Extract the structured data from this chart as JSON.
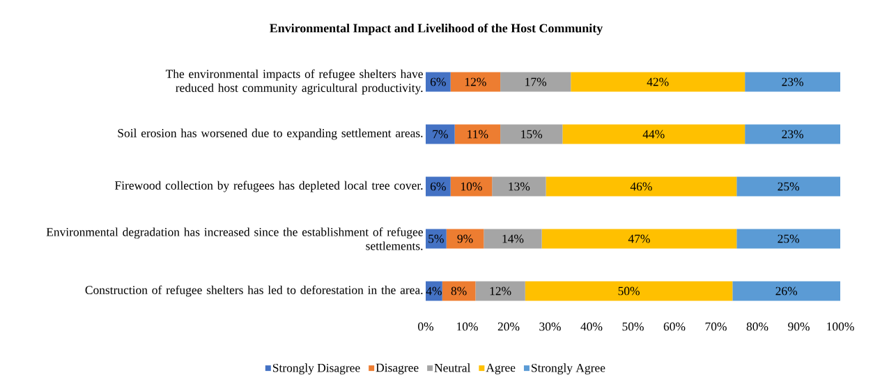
{
  "chart_data": {
    "type": "bar",
    "orientation": "horizontal",
    "stacked": true,
    "title": "Environmental Impact and Livelihood of the Host Community",
    "categories": [
      "The environmental impacts of refugee shelters have reduced host community agricultural productivity.",
      "Soil erosion has worsened due to expanding settlement areas.",
      "Firewood collection by refugees has depleted local tree cover.",
      "Environmental degradation has increased since the establishment of refugee settlements.",
      "Construction of refugee shelters has led to deforestation in the area."
    ],
    "series": [
      {
        "name": "Strongly Disagree",
        "color": "#4472c4",
        "values": [
          6,
          7,
          6,
          5,
          4
        ],
        "value_labels": [
          "6%",
          "7%",
          "6%",
          "5%",
          "4%"
        ]
      },
      {
        "name": "Disagree",
        "color": "#ed7d31",
        "values": [
          12,
          11,
          10,
          9,
          8
        ],
        "value_labels": [
          "12%",
          "11%",
          "10%",
          "9%",
          "8%"
        ]
      },
      {
        "name": "Neutral",
        "color": "#a5a5a5",
        "values": [
          17,
          15,
          13,
          14,
          12
        ],
        "value_labels": [
          "17%",
          "15%",
          "13%",
          "14%",
          "12%"
        ]
      },
      {
        "name": "Agree",
        "color": "#ffc000",
        "values": [
          42,
          44,
          46,
          47,
          50
        ],
        "value_labels": [
          "42%",
          "44%",
          "46%",
          "47%",
          "50%"
        ]
      },
      {
        "name": "Strongly Agree",
        "color": "#5b9bd5",
        "values": [
          23,
          23,
          25,
          25,
          26
        ],
        "value_labels": [
          "23%",
          "23%",
          "25%",
          "25%",
          "26%"
        ]
      }
    ],
    "xlim": [
      0,
      100
    ],
    "xticks": [
      {
        "value": 0,
        "label": "0%"
      },
      {
        "value": 10,
        "label": "10%"
      },
      {
        "value": 20,
        "label": "20%"
      },
      {
        "value": 30,
        "label": "30%"
      },
      {
        "value": 40,
        "label": "40%"
      },
      {
        "value": 50,
        "label": "50%"
      },
      {
        "value": 60,
        "label": "60%"
      },
      {
        "value": 70,
        "label": "70%"
      },
      {
        "value": 80,
        "label": "80%"
      },
      {
        "value": 90,
        "label": "90%"
      },
      {
        "value": 100,
        "label": "100%"
      }
    ],
    "grid": false,
    "legend": "bottom"
  }
}
